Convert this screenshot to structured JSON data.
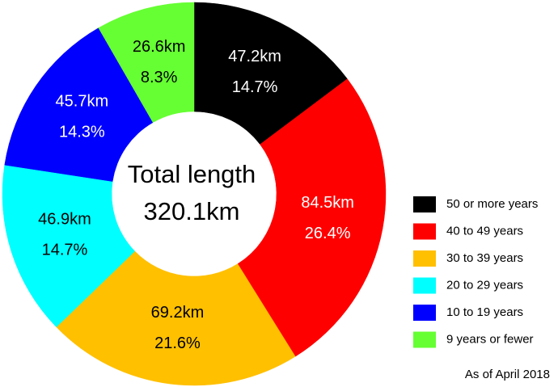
{
  "chart_data": {
    "type": "donut",
    "center_title": "Total length",
    "center_value": "320.1km",
    "categories": [
      "50 or more years",
      "40 to 49 years",
      "30 to 39 years",
      "20 to 29 years",
      "10 to 19 years",
      "9 years or fewer"
    ],
    "colors": [
      "#000000",
      "#ff0000",
      "#ffc000",
      "#00ffff",
      "#0000ff",
      "#66ff33"
    ],
    "values": [
      47.2,
      84.5,
      69.2,
      46.9,
      45.7,
      26.6
    ],
    "value_labels": [
      "47.2km",
      "84.5km",
      "69.2km",
      "46.9km",
      "45.7km",
      "26.6km"
    ],
    "shares": [
      14.7,
      26.4,
      21.6,
      14.7,
      14.3,
      8.3
    ],
    "share_labels": [
      "14.7%",
      "26.4%",
      "21.6%",
      "14.7%",
      "14.3%",
      "8.3%"
    ],
    "note": "As of April 2018"
  }
}
